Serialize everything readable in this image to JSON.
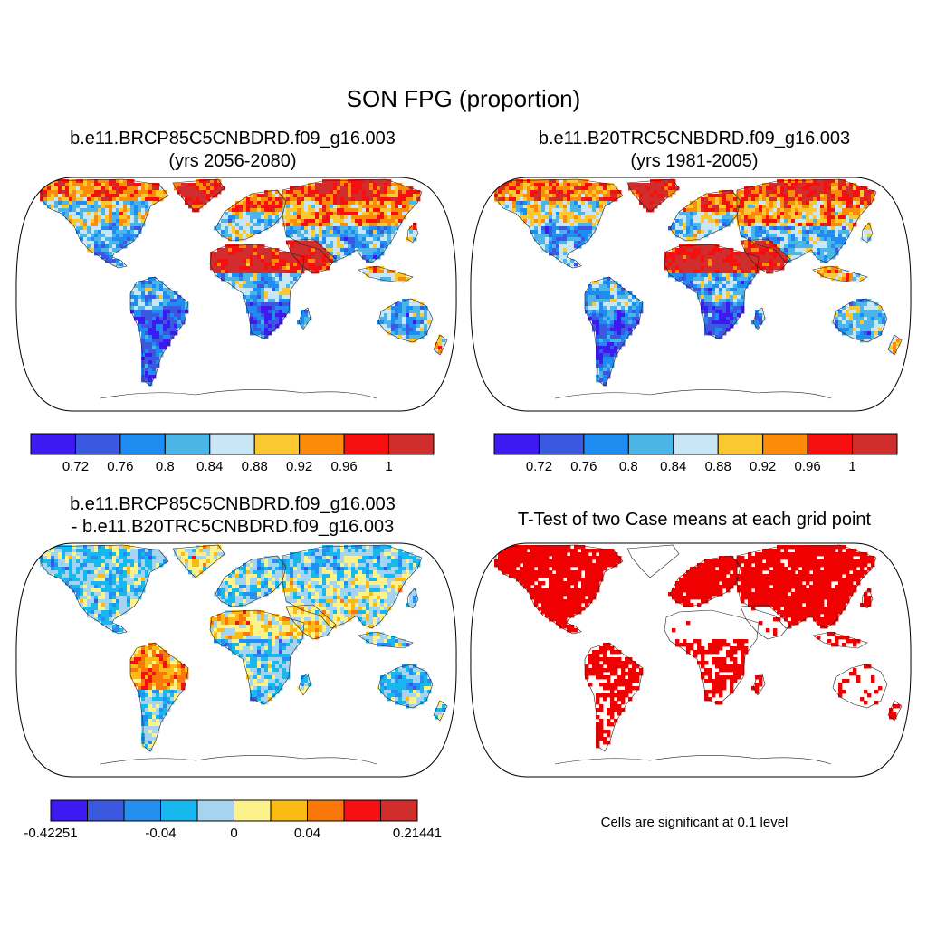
{
  "title": "SON FPG (proportion)",
  "panels": [
    {
      "title_line1": "b.e11.BRCP85C5CNBDRD.f09_g16.003",
      "title_line2": "(yrs 2056-2080)"
    },
    {
      "title_line1": "b.e11.B20TRC5CNBDRD.f09_g16.003",
      "title_line2": "(yrs 1981-2005)"
    },
    {
      "title_line1": "b.e11.BRCP85C5CNBDRD.f09_g16.003",
      "title_line2": "- b.e11.B20TRC5CNBDRD.f09_g16.003"
    },
    {
      "title_line1": "T-Test of two Case means at each grid point",
      "title_line2": ""
    }
  ],
  "colorbars": {
    "absolute": {
      "colors": [
        "#3d1af2",
        "#3a59e0",
        "#1e8cf0",
        "#4bb5e8",
        "#c8e6f5",
        "#fcc832",
        "#fa8c0a",
        "#f50f0f",
        "#d22d2d"
      ],
      "ticks": [
        "0.72",
        "0.76",
        "0.8",
        "0.84",
        "0.88",
        "0.92",
        "0.96",
        "1"
      ]
    },
    "difference": {
      "colors": [
        "#3d1af2",
        "#3a59e0",
        "#238ff0",
        "#18b8ee",
        "#a4d4f0",
        "#fcf28a",
        "#fcbb14",
        "#fa780a",
        "#f50f0f",
        "#d22d2d"
      ],
      "ticks": [
        "-0.42251",
        "-0.04",
        "0",
        "0.04",
        "0.21441"
      ]
    }
  },
  "significance_note": "Cells are significant at 0.1 level",
  "significance_color": "#f00000"
}
